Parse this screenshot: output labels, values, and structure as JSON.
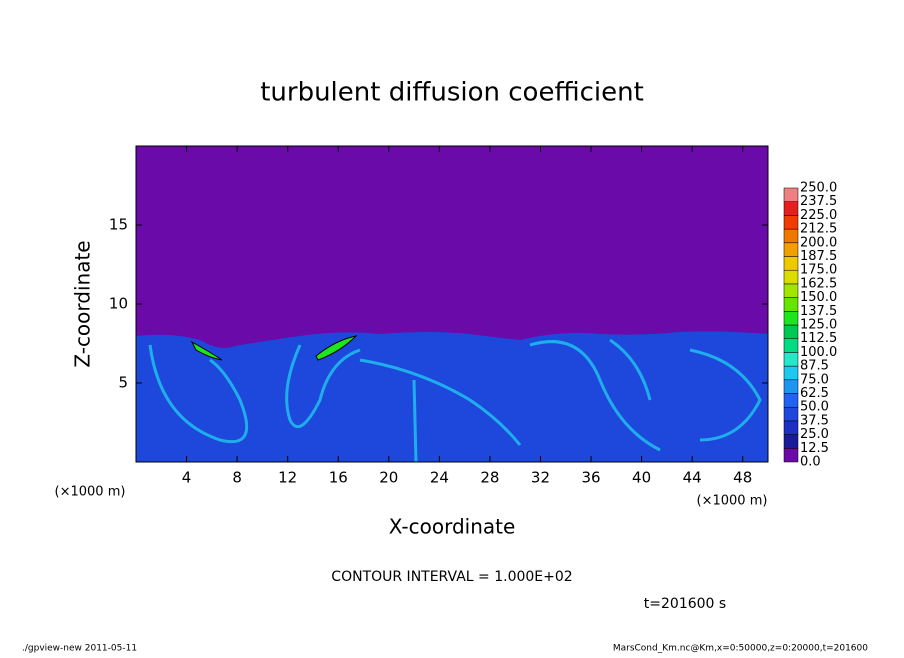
{
  "chart_data": {
    "type": "contour",
    "title": "turbulent diffusion coefficient",
    "xlabel": "X-coordinate",
    "ylabel": "Z-coordinate",
    "x_unit": "(×1000 m)",
    "y_unit": "(×1000 m)",
    "xlim": [
      0,
      50
    ],
    "xticks": [
      4,
      8,
      12,
      16,
      20,
      24,
      28,
      32,
      36,
      40,
      44,
      48
    ],
    "ylim": [
      0,
      20
    ],
    "yticks": [
      5,
      10,
      15
    ],
    "annotation": "CONTOUR INTERVAL = 1.000E+02",
    "time_label": "t=201600 s",
    "footer_left": "./gpview-new   2011-05-11",
    "footer_right": "MarsCond_Km.nc@Km,x=0:50000,z=0:20000,t=201600",
    "colorbar": {
      "levels": [
        {
          "value": 0,
          "label": "0.0"
        },
        12.5,
        {
          "value": 25,
          "label": "25.0"
        },
        37.5,
        {
          "value": 50,
          "label": "50.0"
        },
        62.5,
        {
          "value": 75,
          "label": "75.0"
        },
        87.5,
        {
          "value": 100,
          "label": "100.0"
        },
        112.5,
        {
          "value": 125,
          "label": "125.0"
        },
        137.5,
        {
          "value": 150,
          "label": "150.0"
        },
        162.5,
        {
          "value": 175,
          "label": "175.0"
        },
        187.5,
        {
          "value": 200,
          "label": "200.0"
        },
        212.5,
        {
          "value": 225,
          "label": "225.0"
        },
        237.5,
        {
          "value": 250,
          "label": "250.0"
        }
      ],
      "colors": [
        "#6a0aa8",
        "#1a1a9c",
        "#1e30c4",
        "#1e48dc",
        "#1e64f0",
        "#1e96f0",
        "#1ec8f0",
        "#28e6c8",
        "#00dc82",
        "#00c850",
        "#1ee61e",
        "#64e600",
        "#a0e600",
        "#dcdc00",
        "#f0c800",
        "#f0a000",
        "#f07800",
        "#f03c00",
        "#e61e1e",
        "#f08080"
      ]
    }
  }
}
